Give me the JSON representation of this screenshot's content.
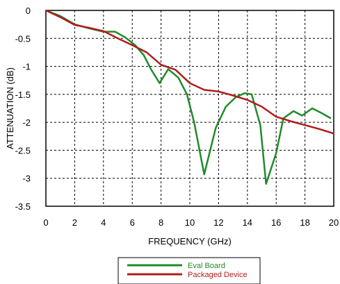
{
  "chart_data": {
    "type": "line",
    "xlabel": "FREQUENCY (GHz)",
    "ylabel": "ATTENUATION (dB)",
    "xlim": [
      0,
      20
    ],
    "ylim": [
      -3.5,
      0
    ],
    "x_ticks": [
      0,
      2,
      4,
      6,
      8,
      10,
      12,
      14,
      16,
      18,
      20
    ],
    "x_tick_labels": [
      "0",
      "2",
      "4",
      "6",
      "8",
      "10",
      "12",
      "14",
      "16",
      "18",
      "20"
    ],
    "y_ticks": [
      0,
      -0.5,
      -1,
      -1.5,
      -2,
      -2.5,
      -3,
      -3.5
    ],
    "y_tick_labels": [
      "0",
      "-0.5",
      "-1",
      "-1.5",
      "-2",
      "-2.5",
      "-3",
      "-3.5"
    ],
    "grid": "dashed",
    "legend_position": "bottom-center",
    "series": [
      {
        "name": "Eval Board",
        "color": "#1f8a2a",
        "x": [
          0,
          1,
          2,
          3,
          4,
          4.8,
          5.5,
          6.2,
          6.8,
          7.3,
          7.9,
          8.5,
          9.2,
          9.8,
          10.3,
          11.0,
          11.8,
          12.5,
          13.2,
          13.8,
          14.3,
          14.9,
          15.3,
          16.0,
          16.5,
          17.2,
          17.8,
          18.5,
          19.2,
          19.8
        ],
        "y": [
          0,
          -0.1,
          -0.25,
          -0.32,
          -0.38,
          -0.38,
          -0.48,
          -0.62,
          -0.8,
          -1.05,
          -1.3,
          -1.05,
          -1.2,
          -1.5,
          -2.0,
          -2.93,
          -2.1,
          -1.72,
          -1.55,
          -1.48,
          -1.5,
          -2.05,
          -3.1,
          -2.55,
          -1.93,
          -1.8,
          -1.88,
          -1.75,
          -1.84,
          -1.93
        ]
      },
      {
        "name": "Packaged Device",
        "color": "#b01c1c",
        "x": [
          0,
          1,
          2,
          3,
          4,
          5,
          6,
          7,
          8,
          9,
          10,
          11,
          12,
          13,
          14,
          15,
          16,
          17,
          18,
          19,
          20
        ],
        "y": [
          0,
          -0.12,
          -0.26,
          -0.31,
          -0.37,
          -0.5,
          -0.62,
          -0.75,
          -0.97,
          -1.06,
          -1.3,
          -1.42,
          -1.45,
          -1.52,
          -1.6,
          -1.72,
          -1.9,
          -1.98,
          -2.05,
          -2.12,
          -2.2
        ]
      }
    ]
  }
}
